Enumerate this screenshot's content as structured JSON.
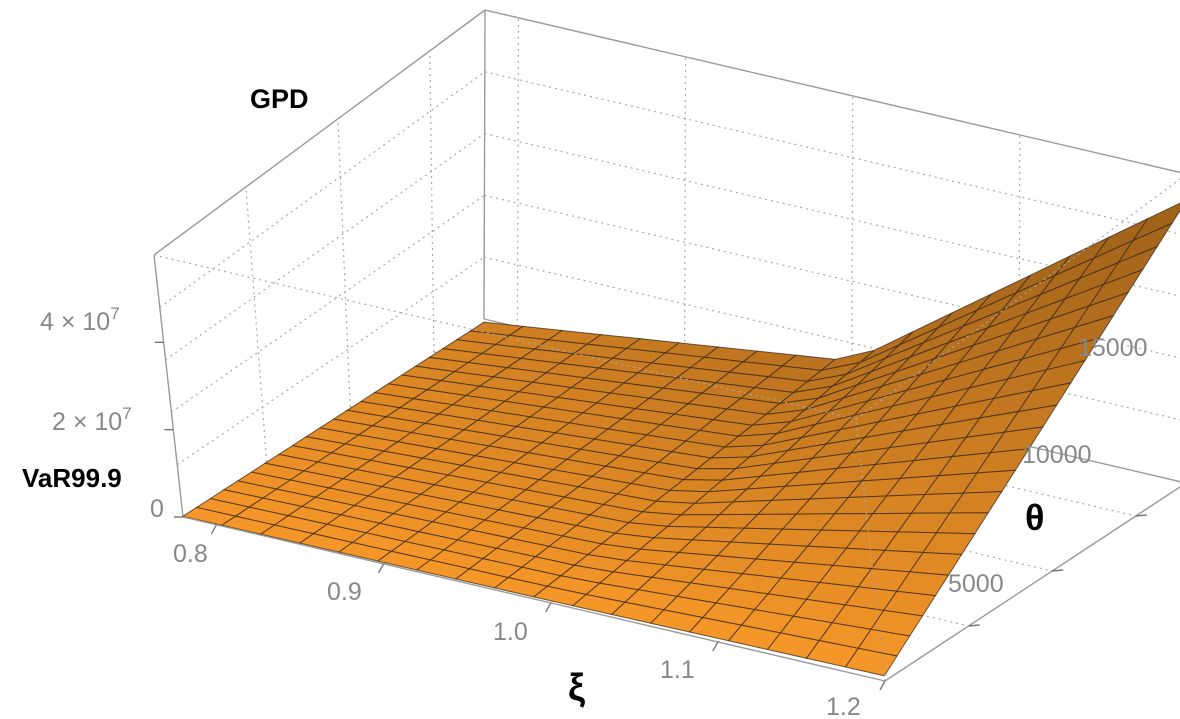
{
  "chart_data": {
    "type": "surface3d",
    "title": "GPD",
    "xlabel": "ξ",
    "ylabel": "θ",
    "zlabel": "VaR99.9",
    "x_ticks": [
      "0.8",
      "0.9",
      "1.0",
      "1.1",
      "1.2"
    ],
    "x_tick_values": [
      0.8,
      0.9,
      1.0,
      1.1,
      1.2
    ],
    "y_ticks": [
      "5000",
      "10000",
      "15000"
    ],
    "y_tick_values": [
      5000,
      10000,
      15000
    ],
    "z_ticks": [
      {
        "mantissa": "0",
        "exp": ""
      },
      {
        "mantissa": "2 × 10",
        "exp": "7"
      },
      {
        "mantissa": "4 × 10",
        "exp": "7"
      }
    ],
    "z_tick_values": [
      0,
      20000000,
      40000000
    ],
    "xlim": [
      0.78,
      1.2
    ],
    "ylim": [
      0,
      18000
    ],
    "zlim": [
      0,
      60000000
    ],
    "grid": true,
    "surface_color": "#f59a2a",
    "surface_samples": {
      "x": [
        0.8,
        1.0,
        1.2
      ],
      "y": [
        0,
        9000,
        18000
      ],
      "z": [
        [
          200000,
          200000,
          200000
        ],
        [
          500000,
          4500000,
          8500000
        ],
        [
          1200000,
          28000000,
          55000000
        ]
      ]
    }
  }
}
